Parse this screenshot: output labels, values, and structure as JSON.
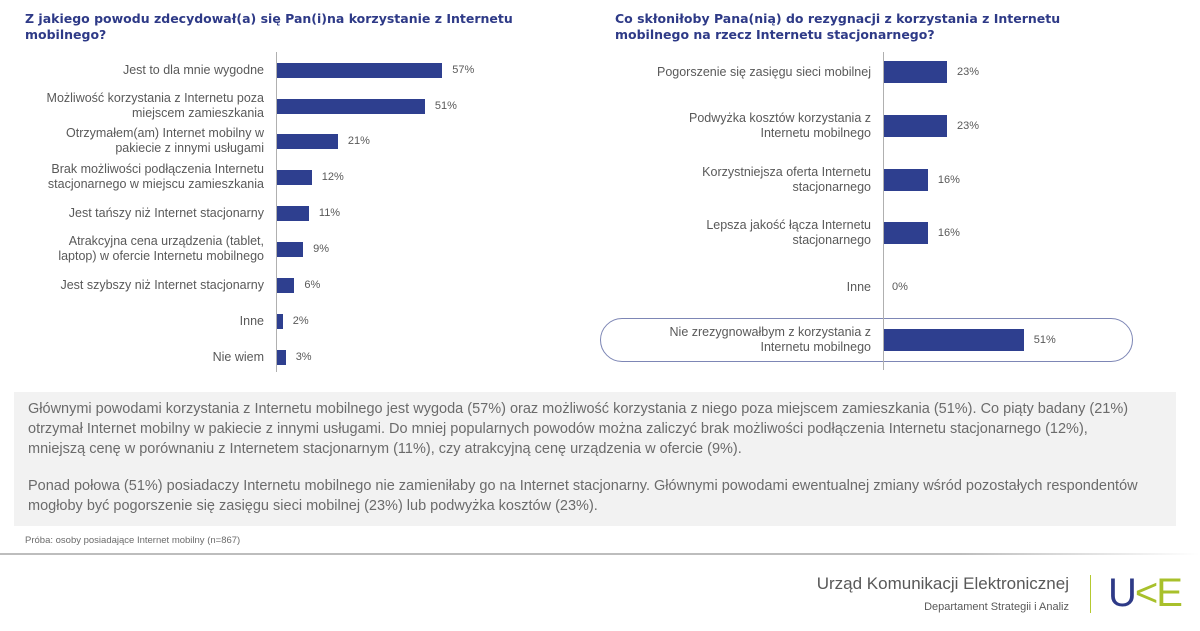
{
  "chart_data": [
    {
      "type": "bar",
      "orientation": "horizontal",
      "title": "Z jakiego powodu zdecydował(a) się Pan(i)na korzystanie z Internetu mobilnego?",
      "categories": [
        "Jest to dla mnie wygodne",
        "Możliwość korzystania z Internetu poza miejscem zamieszkania",
        "Otrzymałem(am) Internet mobilny w pakiecie z innymi usługami",
        "Brak możliwości podłączenia Internetu stacjonarnego w miejscu zamieszkania",
        "Jest tańszy niż Internet stacjonarny",
        "Atrakcyjna cena urządzenia (tablet, laptop) w ofercie Internetu mobilnego",
        "Jest szybszy niż Internet stacjonarny",
        "Inne",
        "Nie wiem"
      ],
      "label_lines": [
        [
          "Jest to dla mnie wygodne"
        ],
        [
          "Możliwość korzystania z Internetu poza",
          "miejscem zamieszkania"
        ],
        [
          "Otrzymałem(am) Internet mobilny w",
          "pakiecie z innymi usługami"
        ],
        [
          "Brak możliwości podłączenia Internetu",
          "stacjonarnego w miejscu zamieszkania"
        ],
        [
          "Jest tańszy niż Internet stacjonarny"
        ],
        [
          "Atrakcyjna cena urządzenia (tablet,",
          "laptop) w ofercie Internetu mobilnego"
        ],
        [
          "Jest szybszy niż Internet stacjonarny"
        ],
        [
          "Inne"
        ],
        [
          "Nie wiem"
        ]
      ],
      "values": [
        57,
        51,
        21,
        12,
        11,
        9,
        6,
        2,
        3
      ],
      "value_labels": [
        "57%",
        "51%",
        "21%",
        "12%",
        "11%",
        "9%",
        "6%",
        "2%",
        "3%"
      ],
      "unit": "%",
      "xlim": [
        0,
        60
      ],
      "grid": false,
      "legend": "none",
      "bar_color": "#2e3f8f"
    },
    {
      "type": "bar",
      "orientation": "horizontal",
      "title": "Co skłoniłoby Pana(nią) do rezygnacji z korzystania z Internetu mobilnego na rzecz Internetu stacjonarnego?",
      "categories": [
        "Pogorszenie się zasięgu sieci mobilnej",
        "Podwyżka kosztów korzystania z Internetu mobilnego",
        "Korzystniejsza oferta Internetu stacjonarnego",
        "Lepsza jakość łącza Internetu stacjonarnego",
        "Inne",
        "Nie zrezygnowałbym z korzystania z Internetu mobilnego"
      ],
      "label_lines": [
        [
          "Pogorszenie się zasięgu sieci mobilnej"
        ],
        [
          "Podwyżka kosztów korzystania z",
          "Internetu mobilnego"
        ],
        [
          "Korzystniejsza oferta Internetu",
          "stacjonarnego"
        ],
        [
          "Lepsza jakość łącza Internetu",
          "stacjonarnego"
        ],
        [
          "Inne"
        ],
        [
          "Nie zrezygnowałbym z korzystania z",
          "Internetu mobilnego"
        ]
      ],
      "values": [
        23,
        23,
        16,
        16,
        0,
        51
      ],
      "value_labels": [
        "23%",
        "23%",
        "16%",
        "16%",
        "0%",
        "51%"
      ],
      "highlighted_category": "Nie zrezygnowałbym z korzystania z Internetu mobilnego",
      "unit": "%",
      "xlim": [
        0,
        60
      ],
      "grid": false,
      "legend": "none",
      "bar_color": "#2e3f8f"
    }
  ],
  "summary": {
    "paragraph1": "Głównymi powodami korzystania z Internetu mobilnego jest wygoda (57%) oraz możliwość korzystania z niego poza miejscem zamieszkania (51%). Co piąty badany (21%) otrzymał Internet mobilny w pakiecie z innymi usługami. Do mniej popularnych powodów można zaliczyć brak możliwości podłączenia Internetu stacjonarnego (12%), mniejszą cenę w porównaniu z Internetem stacjonarnym (11%), czy atrakcyjną cenę urządzenia w ofercie (9%).",
    "paragraph2": "Ponad połowa (51%) posiadaczy Internetu mobilnego nie zamieniłaby go na Internet stacjonarny. Głównymi powodami ewentualnej zmiany wśród pozostałych respondentów mogłoby być pogorszenie się zasięgu sieci mobilnej (23%) lub podwyżka kosztów (23%)."
  },
  "sample_note": "Próba: osoby posiadające Internet mobilny (n=867)",
  "footer": {
    "org_name": "Urząd Komunikacji Elektronicznej",
    "department": "Departament Strategii i Analiz",
    "logo_u": "U",
    "logo_k": "<",
    "logo_e": "E"
  },
  "colors": {
    "title": "#2e3a87",
    "bar": "#2e3f8f",
    "logo_blue": "#2e3a87",
    "logo_green": "#a8c02b"
  }
}
